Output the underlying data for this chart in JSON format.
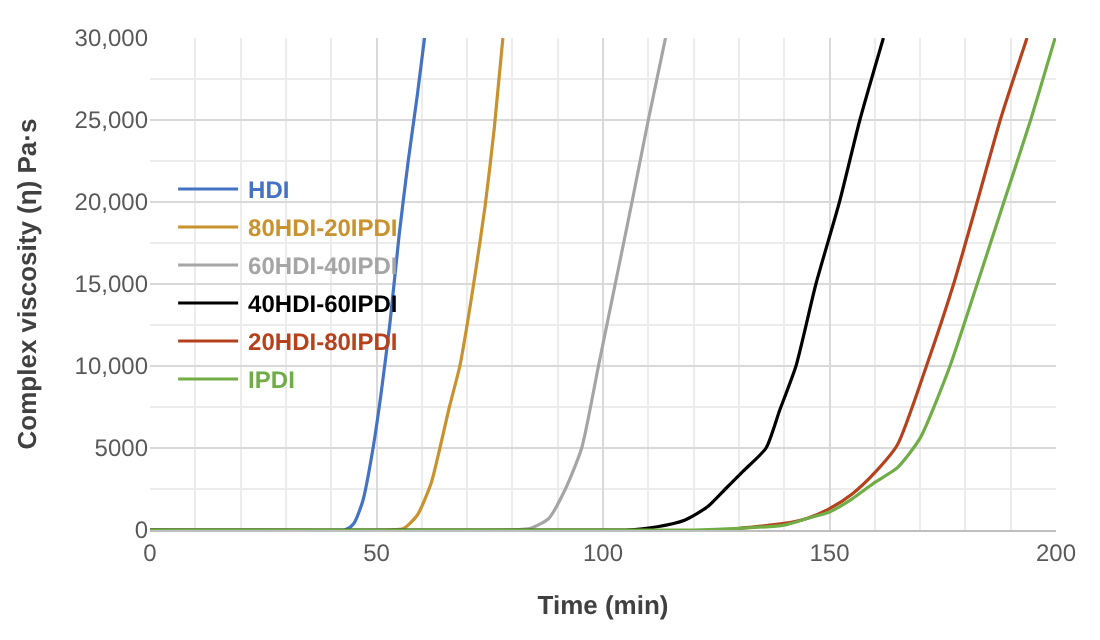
{
  "chart_data": {
    "type": "line",
    "xlabel": "Time (min)",
    "ylabel": "Complex viscosity (η) Pa·s",
    "xlim": [
      0,
      200
    ],
    "xticks": [
      0,
      50,
      100,
      150,
      200
    ],
    "ylim": [
      0,
      30000
    ],
    "yticks": [
      0,
      5000,
      {
        "value": 10000,
        "label": "10,000"
      },
      {
        "value": 15000,
        "label": "15,000"
      },
      {
        "value": 20000,
        "label": "20,000"
      },
      {
        "value": 25000,
        "label": "25,000"
      },
      {
        "value": 30000,
        "label": "30,000"
      }
    ],
    "grid": true,
    "legend": "left",
    "marker": "none",
    "line_style": "solid",
    "series": [
      {
        "name": "HDI",
        "color": "#4472c4",
        "x": [
          0,
          43,
          45,
          47,
          49,
          51,
          53,
          55,
          57,
          59,
          60.6
        ],
        "values": [
          0,
          0,
          400,
          1800,
          4600,
          8300,
          12700,
          18000,
          22500,
          26500,
          30000
        ]
      },
      {
        "name": "80HDI-20IPDI",
        "color": "#c8922e",
        "x": [
          0,
          53,
          56,
          59,
          62,
          64,
          66,
          68.4,
          70,
          72,
          74,
          76,
          77.9
        ],
        "values": [
          0,
          0,
          100,
          900,
          2800,
          5000,
          7400,
          10000,
          12500,
          16000,
          19800,
          24500,
          30000
        ]
      },
      {
        "name": "60HDI-40IPDI",
        "color": "#a5a5a5",
        "x": [
          0,
          80,
          84,
          88,
          91.7,
          95.3,
          99,
          102.7,
          106.4,
          110,
          113.8
        ],
        "values": [
          0,
          0,
          100,
          700,
          2500,
          5000,
          10000,
          15000,
          20000,
          25000,
          30000
        ]
      },
      {
        "name": "40HDI-60IPDI",
        "color": "#000000",
        "x": [
          0,
          95,
          105,
          112,
          118,
          123,
          127,
          131,
          136,
          139,
          142.6,
          147,
          152.2,
          156.7,
          161.9
        ],
        "values": [
          0,
          0,
          0,
          200,
          600,
          1400,
          2500,
          3600,
          5000,
          7300,
          10000,
          15000,
          20000,
          25000,
          30000
        ]
      },
      {
        "name": "20HDI-80IPDI",
        "color": "#b5421c",
        "x": [
          130,
          140,
          145,
          150,
          155,
          160,
          165,
          171.4,
          177.4,
          182.6,
          187.7,
          193.6
        ],
        "values": [
          100,
          400,
          700,
          1300,
          2200,
          3500,
          5200,
          10000,
          15000,
          20000,
          25000,
          30000
        ]
      },
      {
        "name": "IPDI",
        "color": "#70ad47",
        "x": [
          0,
          110,
          120,
          130,
          140,
          145,
          150,
          155,
          160,
          165,
          170,
          176.6,
          182.6,
          188.5,
          194.4,
          199.8
        ],
        "values": [
          0,
          0,
          0,
          100,
          300,
          700,
          1100,
          1900,
          2900,
          3800,
          5600,
          10000,
          15000,
          20000,
          25000,
          30000
        ]
      }
    ]
  }
}
